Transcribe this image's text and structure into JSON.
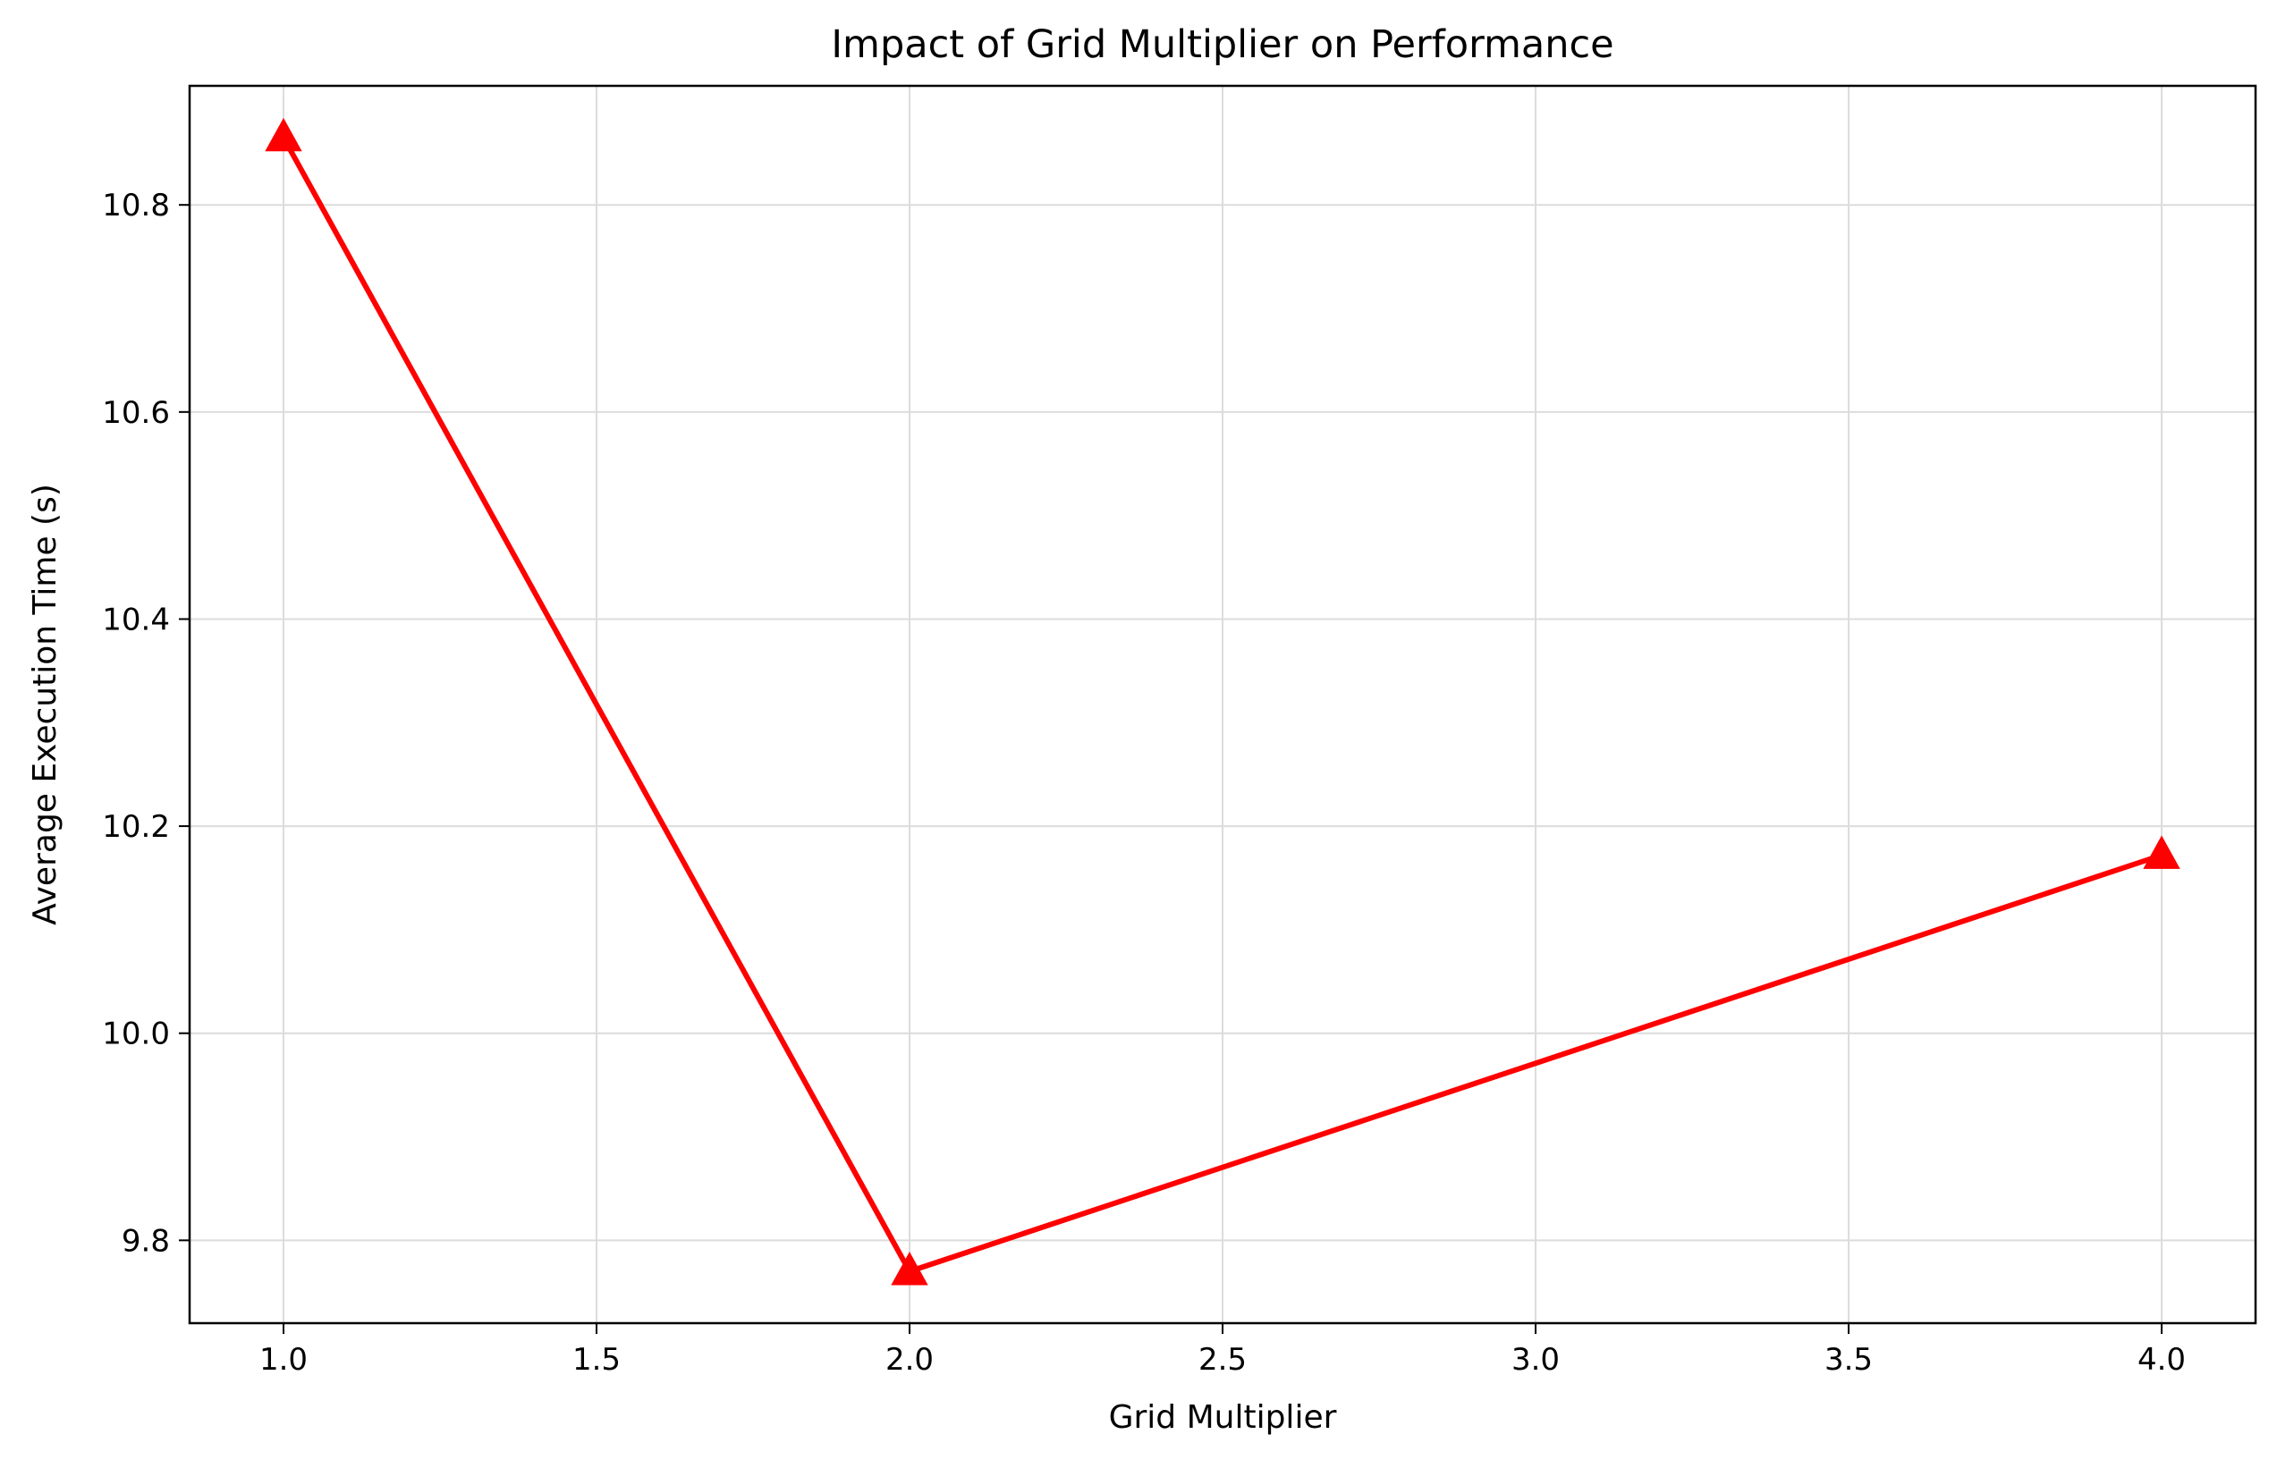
{
  "chart_data": {
    "type": "line",
    "title": "Impact of Grid Multiplier on Performance",
    "xlabel": "Grid Multiplier",
    "ylabel": "Average Execution Time (s)",
    "xlim": [
      0.85,
      4.15
    ],
    "ylim": [
      9.72,
      10.915
    ],
    "xticks": [
      1.0,
      1.5,
      2.0,
      2.5,
      3.0,
      3.5,
      4.0
    ],
    "xtick_labels": [
      "1.0",
      "1.5",
      "2.0",
      "2.5",
      "3.0",
      "3.5",
      "4.0"
    ],
    "yticks": [
      9.8,
      10.0,
      10.2,
      10.4,
      10.6,
      10.8
    ],
    "ytick_labels": [
      "9.8",
      "10.0",
      "10.2",
      "10.4",
      "10.6",
      "10.8"
    ],
    "grid": true,
    "marker": "triangle-up",
    "line_color": "#ff0000",
    "x": [
      1.0,
      2.0,
      4.0
    ],
    "y": [
      10.865,
      9.77,
      10.172
    ]
  }
}
